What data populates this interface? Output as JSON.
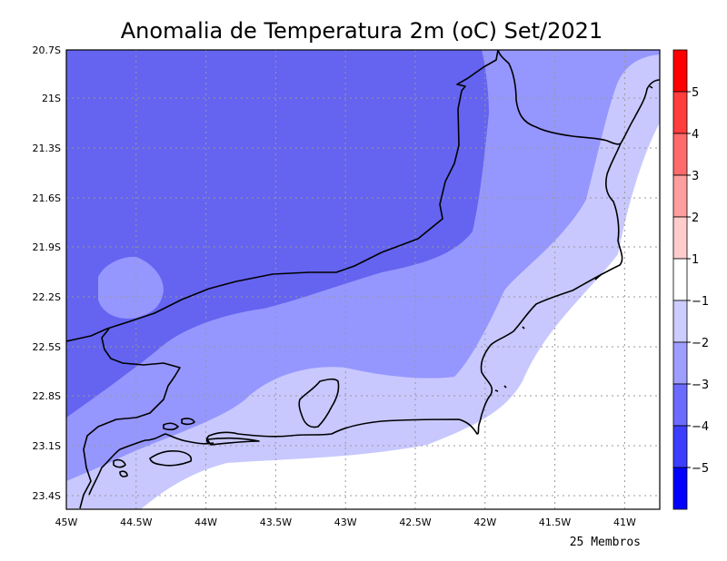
{
  "title": "Anomalia de Temperatura 2m (oC) Set/2021",
  "footer": "25 Membros",
  "axes": {
    "x_labels": [
      "45W",
      "44.5W",
      "44W",
      "43.5W",
      "43W",
      "42.5W",
      "42W",
      "41.5W",
      "41W"
    ],
    "y_labels": [
      "20.7S",
      "21S",
      "21.3S",
      "21.6S",
      "21.9S",
      "22.2S",
      "22.5S",
      "22.8S",
      "23.1S",
      "23.4S"
    ]
  },
  "colorbar": {
    "labels": [
      "5",
      "4",
      "3",
      "2",
      "1",
      "−1",
      "−2",
      "−3",
      "−4",
      "−5"
    ],
    "colors": [
      "#ff0000",
      "#ff3d3d",
      "#ff6b6b",
      "#ff9e9e",
      "#ffcccc",
      "#ffffff",
      "#ccccff",
      "#9e9eff",
      "#6b6bff",
      "#3d3dff",
      "#0000ff"
    ]
  },
  "field_colors": {
    "c_m4": "#6464f0",
    "c_m3": "#9696ff",
    "c_m2": "#c8c8ff",
    "c_m1": "#ffffff"
  }
}
